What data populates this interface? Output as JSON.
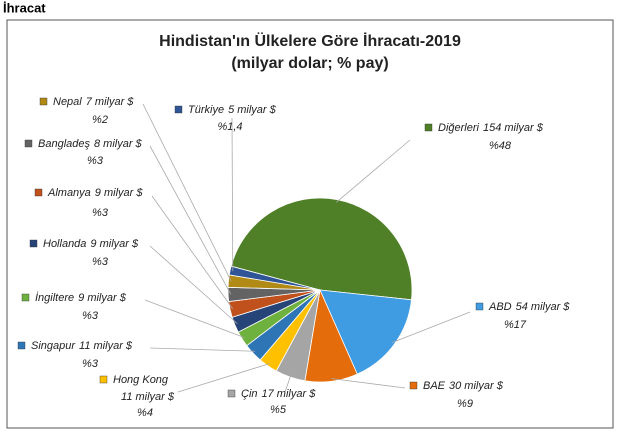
{
  "page_title": "İhracat",
  "chart_data": {
    "type": "pie",
    "title": "Hindistan'ın Ülkelere Göre İhracatı-2019",
    "subtitle": "(milyar dolar; % pay)",
    "categories": [
      "Diğerleri",
      "ABD",
      "BAE",
      "Çin",
      "Hong Kong",
      "Singapur",
      "İngiltere",
      "Hollanda",
      "Almanya",
      "Bangladeş",
      "Nepal",
      "Türkiye"
    ],
    "values": [
      154,
      54,
      30,
      17,
      11,
      11,
      9,
      9,
      9,
      8,
      7,
      5
    ],
    "value_labels": [
      "154 milyar $",
      "54 milyar $",
      "30 milyar $",
      "17 milyar $",
      "11 milyar $",
      "11 milyar $",
      "9 milyar $",
      "9 milyar $",
      "9 milyar $",
      "8 milyar $",
      "7 milyar $",
      "5 milyar $"
    ],
    "shares": [
      48,
      17,
      9,
      5,
      4,
      3,
      3,
      3,
      3,
      3,
      2,
      1.4
    ],
    "share_labels": [
      "%48",
      "%17",
      "%9",
      "%5",
      "%4",
      "%3",
      "%3",
      "%3",
      "%3",
      "%3",
      "%2",
      "%1,4"
    ],
    "colors": [
      "#4f7f26",
      "#3f9be2",
      "#e46c0a",
      "#a5a5a5",
      "#ffc000",
      "#2e75b6",
      "#6fb13f",
      "#264478",
      "#c0501c",
      "#636363",
      "#b08a14",
      "#2f5597"
    ]
  }
}
